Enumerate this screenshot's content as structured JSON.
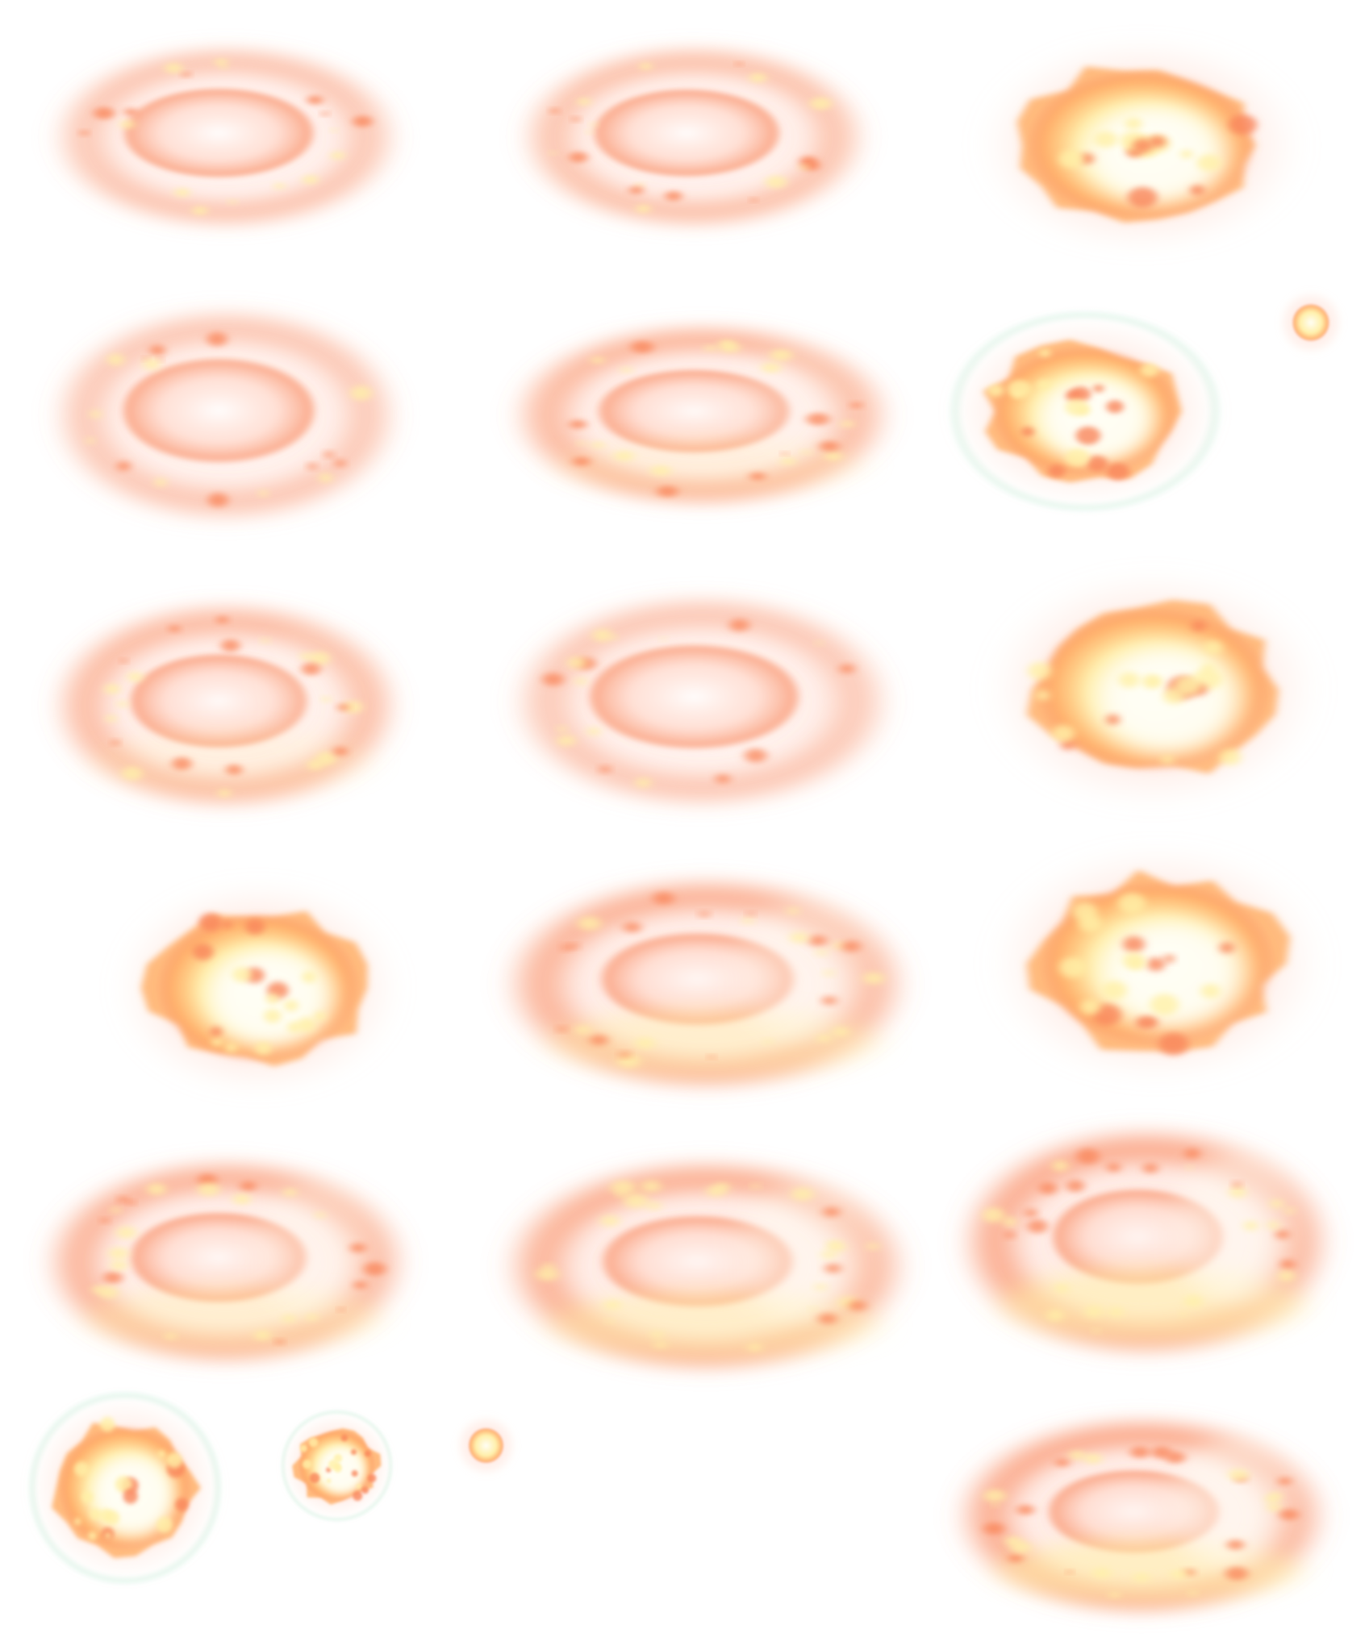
{
  "sprite_sheet": {
    "background": "#ffffff",
    "palette": {
      "core_white": "#fffef6",
      "hot_yellow": "#fff0a8",
      "ember_orange": "#ffb06a",
      "fire_red_orange": "#f9865a",
      "soft_pink": "#ffd6c8",
      "halo_mint": "#e7f7ee"
    },
    "effect": "fire-explosion",
    "frame_count": 21,
    "frames": [
      {
        "id": "f01",
        "kind": "ring",
        "intensity": 0.25
      },
      {
        "id": "f02",
        "kind": "ring",
        "intensity": 0.35
      },
      {
        "id": "f03",
        "kind": "burst",
        "intensity": 0.9
      },
      {
        "id": "f04",
        "kind": "spark",
        "intensity": 0.5
      },
      {
        "id": "f05",
        "kind": "ring",
        "intensity": 0.2
      },
      {
        "id": "f06",
        "kind": "ring",
        "intensity": 0.6
      },
      {
        "id": "f07",
        "kind": "burst-halo",
        "intensity": 0.8
      },
      {
        "id": "f08",
        "kind": "ring",
        "intensity": 0.55
      },
      {
        "id": "f09",
        "kind": "ring",
        "intensity": 0.2
      },
      {
        "id": "f10",
        "kind": "burst",
        "intensity": 1.0
      },
      {
        "id": "f11",
        "kind": "burst",
        "intensity": 0.95
      },
      {
        "id": "f12",
        "kind": "ring",
        "intensity": 0.8
      },
      {
        "id": "f13",
        "kind": "burst",
        "intensity": 1.0
      },
      {
        "id": "f14",
        "kind": "ring",
        "intensity": 0.75
      },
      {
        "id": "f15",
        "kind": "ring",
        "intensity": 0.85
      },
      {
        "id": "f16",
        "kind": "ring",
        "intensity": 0.95
      },
      {
        "id": "f17",
        "kind": "burst-halo",
        "intensity": 0.8
      },
      {
        "id": "f18",
        "kind": "burst-halo",
        "intensity": 0.7
      },
      {
        "id": "f19",
        "kind": "spark",
        "intensity": 0.7
      },
      {
        "id": "f20",
        "kind": "ring",
        "intensity": 0.95
      },
      {
        "id": "f21",
        "kind": "empty",
        "intensity": 0
      }
    ]
  }
}
